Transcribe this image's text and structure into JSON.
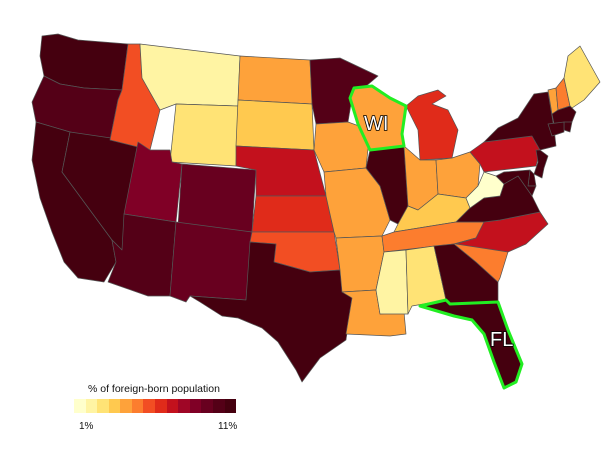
{
  "legend": {
    "title": "% of foreign-born population",
    "min_label": "1%",
    "max_label": "11%",
    "colors": [
      "#ffffcc",
      "#fff4a3",
      "#ffe375",
      "#ffc94f",
      "#fea23a",
      "#fc7d2e",
      "#f24e23",
      "#e02b1a",
      "#c3111d",
      "#9f0626",
      "#800026",
      "#68001f",
      "#540017",
      "#45000f"
    ]
  },
  "highlighted_states": [
    {
      "abbr": "WI",
      "label": "WI"
    },
    {
      "abbr": "FL",
      "label": "FL"
    }
  ],
  "highlight_color": "#22ee22",
  "chart_data": {
    "type": "choropleth",
    "value_range_pct": [
      1,
      11
    ],
    "bins": 14,
    "state_bins": {
      "WA": 13,
      "OR": 12,
      "CA": 13,
      "NV": 13,
      "ID": 6,
      "MT": 1,
      "WY": 2,
      "UT": 10,
      "AZ": 12,
      "CO": 11,
      "NM": 11,
      "ND": 4,
      "SD": 3,
      "NE": 8,
      "KS": 7,
      "OK": 6,
      "TX": 13,
      "MN": 12,
      "IA": 4,
      "MO": 4,
      "AR": 4,
      "LA": 4,
      "WI": 4,
      "IL": 13,
      "MI": 7,
      "IN": 4,
      "OH": 4,
      "KY": 3,
      "TN": 5,
      "MS": 1,
      "AL": 2,
      "GA": 13,
      "FL": 13,
      "SC": 5,
      "NC": 8,
      "VA": 13,
      "WV": 0,
      "PA": 8,
      "NY": 13,
      "VT": 4,
      "NH": 5,
      "ME": 2,
      "MA": 13,
      "RI": 13,
      "CT": 13,
      "NJ": 13,
      "DE": 13,
      "MD": 13
    }
  }
}
